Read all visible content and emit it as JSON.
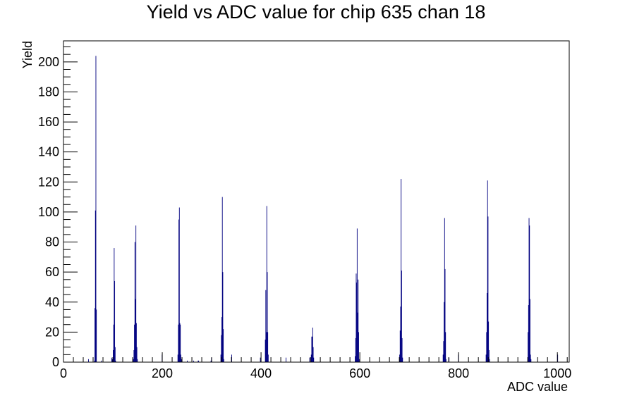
{
  "chart_data": {
    "type": "bar",
    "title": "Yield vs ADC value for chip 635 chan 18",
    "xlabel": "ADC value",
    "ylabel": "Yield",
    "xlim": [
      0,
      1024
    ],
    "ylim": [
      0,
      214
    ],
    "x_ticks": [
      0,
      200,
      400,
      600,
      800,
      1000
    ],
    "y_ticks": [
      0,
      20,
      40,
      60,
      80,
      100,
      120,
      140,
      160,
      180,
      200
    ],
    "grid": false,
    "legend": "none",
    "bar_color": "#000080",
    "bin_width": 1,
    "bins": [
      [
        50,
        2
      ],
      [
        62,
        1
      ],
      [
        63,
        36
      ],
      [
        64,
        101
      ],
      [
        65,
        204
      ],
      [
        66,
        35
      ],
      [
        76,
        1
      ],
      [
        97,
        3
      ],
      [
        98,
        2
      ],
      [
        100,
        8
      ],
      [
        101,
        25
      ],
      [
        102,
        76
      ],
      [
        103,
        54
      ],
      [
        104,
        10
      ],
      [
        105,
        1
      ],
      [
        141,
        2
      ],
      [
        142,
        8
      ],
      [
        143,
        25
      ],
      [
        144,
        80
      ],
      [
        145,
        42
      ],
      [
        146,
        91
      ],
      [
        147,
        26
      ],
      [
        148,
        10
      ],
      [
        149,
        2
      ],
      [
        199,
        5
      ],
      [
        231,
        5
      ],
      [
        232,
        25
      ],
      [
        233,
        95
      ],
      [
        234,
        103
      ],
      [
        235,
        26
      ],
      [
        236,
        25
      ],
      [
        237,
        5
      ],
      [
        238,
        2
      ],
      [
        250,
        1
      ],
      [
        263,
        1
      ],
      [
        272,
        1
      ],
      [
        273,
        1
      ],
      [
        298,
        1
      ],
      [
        299,
        3
      ],
      [
        318,
        5
      ],
      [
        319,
        18
      ],
      [
        320,
        30
      ],
      [
        321,
        110
      ],
      [
        322,
        60
      ],
      [
        323,
        22
      ],
      [
        324,
        2
      ],
      [
        340,
        5
      ],
      [
        398,
        3
      ],
      [
        408,
        15
      ],
      [
        409,
        48
      ],
      [
        410,
        20
      ],
      [
        411,
        104
      ],
      [
        412,
        60
      ],
      [
        413,
        20
      ],
      [
        414,
        5
      ],
      [
        450,
        3
      ],
      [
        498,
        3
      ],
      [
        501,
        5
      ],
      [
        502,
        17
      ],
      [
        503,
        17
      ],
      [
        504,
        23
      ],
      [
        505,
        10
      ],
      [
        506,
        3
      ],
      [
        590,
        4
      ],
      [
        591,
        16
      ],
      [
        592,
        59
      ],
      [
        593,
        53
      ],
      [
        594,
        89
      ],
      [
        595,
        33
      ],
      [
        596,
        55
      ],
      [
        597,
        20
      ],
      [
        598,
        2
      ],
      [
        680,
        5
      ],
      [
        681,
        21
      ],
      [
        682,
        37
      ],
      [
        683,
        122
      ],
      [
        684,
        61
      ],
      [
        685,
        16
      ],
      [
        686,
        3
      ],
      [
        768,
        5
      ],
      [
        769,
        14
      ],
      [
        770,
        40
      ],
      [
        771,
        96
      ],
      [
        772,
        62
      ],
      [
        773,
        20
      ],
      [
        774,
        2
      ],
      [
        780,
        3
      ],
      [
        799,
        5
      ],
      [
        855,
        5
      ],
      [
        856,
        20
      ],
      [
        857,
        46
      ],
      [
        858,
        121
      ],
      [
        859,
        97
      ],
      [
        860,
        27
      ],
      [
        861,
        8
      ],
      [
        862,
        2
      ],
      [
        940,
        20
      ],
      [
        941,
        38
      ],
      [
        942,
        96
      ],
      [
        943,
        91
      ],
      [
        944,
        42
      ],
      [
        945,
        5
      ],
      [
        946,
        2
      ],
      [
        1000,
        5
      ]
    ]
  }
}
